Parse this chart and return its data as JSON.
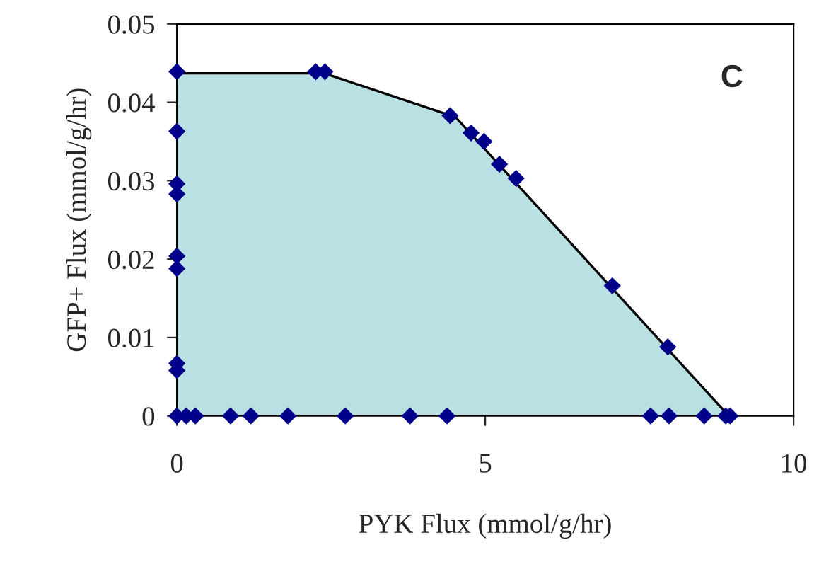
{
  "chart_data": {
    "type": "area",
    "xlabel": "PYK Flux (mmol/g/hr)",
    "ylabel": "GFP+ Flux (mmol/g/hr)",
    "annotations": [
      "C"
    ],
    "xlim": [
      0,
      10
    ],
    "xticks": [
      0,
      5,
      10
    ],
    "ylim": [
      0,
      0.05
    ],
    "yticks": [
      0,
      0.01,
      0.02,
      0.03,
      0.04,
      0.05
    ],
    "grid": false,
    "legend": false,
    "series": [
      {
        "color": "#b9e0e3",
        "x": [
          0,
          2.39,
          4.52,
          8.95
        ],
        "values": [
          0.0437,
          0.0437,
          0.0381,
          0
        ]
      },
      {
        "type": "scatter",
        "color": "#00008b",
        "marker": "diamond",
        "x": [
          0,
          0,
          0,
          0,
          0,
          0,
          0,
          0,
          0,
          2.25,
          2.4,
          4.43,
          4.77,
          4.98,
          5.23,
          5.5,
          7.06,
          7.96,
          8.97,
          0.15,
          0.3,
          0.87,
          1.2,
          1.8,
          2.73,
          3.78,
          4.38,
          7.68,
          7.98,
          8.55,
          8.9
        ],
        "values": [
          0.0439,
          0.0363,
          0.0296,
          0.0283,
          0.0204,
          0.0188,
          0.0067,
          0.0058,
          0,
          0.0439,
          0.0439,
          0.0383,
          0.0361,
          0.035,
          0.0321,
          0.0303,
          0.0166,
          0.0088,
          0,
          0,
          0,
          0,
          0,
          0,
          0,
          0,
          0,
          0,
          0,
          0,
          0
        ]
      }
    ]
  }
}
